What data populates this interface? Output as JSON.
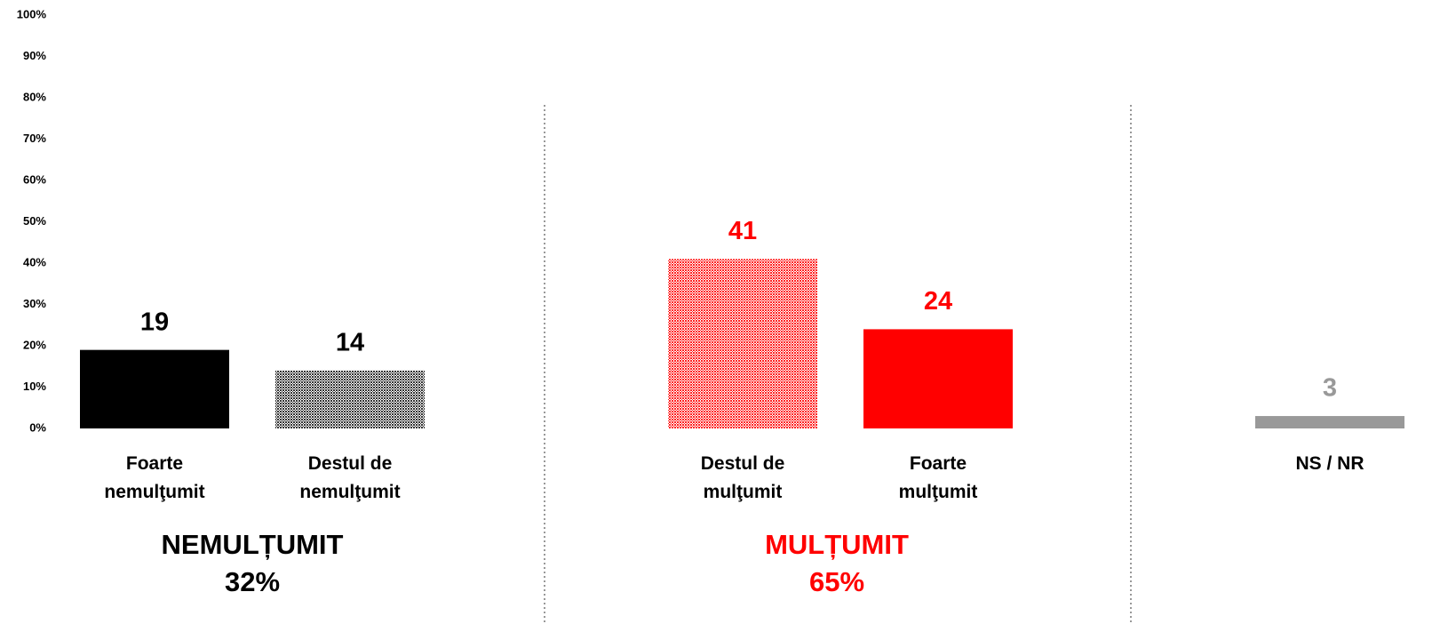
{
  "chart_data": {
    "type": "bar",
    "categories": [
      "Foarte nemulţumit",
      "Destul de nemulţumit",
      "Destul de mulţumit",
      "Foarte mulţumit",
      "NS / NR"
    ],
    "values": [
      19,
      14,
      41,
      24,
      3
    ],
    "colors": [
      "#000000",
      "#333333",
      "#ff2020",
      "#ff0000",
      "#999999"
    ],
    "patterned": [
      false,
      true,
      true,
      false,
      false
    ],
    "label_colors": [
      "#000000",
      "#000000",
      "#ff0000",
      "#ff0000",
      "#999999"
    ],
    "ylim": [
      0,
      100
    ],
    "yticks": [
      {
        "value": 0,
        "label": "0%"
      },
      {
        "value": 10,
        "label": "10%"
      },
      {
        "value": 20,
        "label": "20%"
      },
      {
        "value": 30,
        "label": "30%"
      },
      {
        "value": 40,
        "label": "40%"
      },
      {
        "value": 50,
        "label": "50%"
      },
      {
        "value": 60,
        "label": "60%"
      },
      {
        "value": 70,
        "label": "70%"
      },
      {
        "value": 80,
        "label": "80%"
      },
      {
        "value": 90,
        "label": "90%"
      },
      {
        "value": 100,
        "label": "100%"
      }
    ],
    "grid": false,
    "groups": [
      {
        "name": "NEMULȚUMIT",
        "value": 32,
        "value_label": "32%",
        "color": "#000000"
      },
      {
        "name": "MULȚUMIT",
        "value": 65,
        "value_label": "65%",
        "color": "#ff0000"
      }
    ]
  }
}
